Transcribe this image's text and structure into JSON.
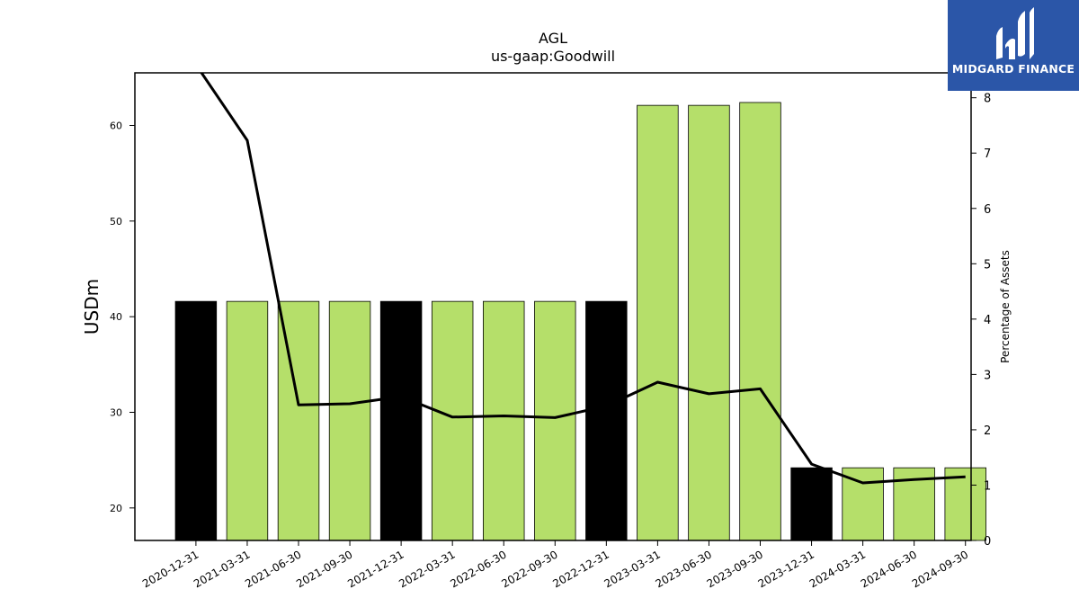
{
  "logo": {
    "text": "MIDGARD FINANCE",
    "bg_color": "#2b56a8",
    "fg_color": "#ffffff"
  },
  "chart_data": {
    "type": "bar",
    "title": "AGL",
    "subtitle": "us-gaap:Goodwill",
    "ylabel": "USDm",
    "ylabel_right": "Percentage of Assets",
    "ylim": [
      16.6,
      65.5
    ],
    "ylim_right": [
      0,
      8.45
    ],
    "yticks": [
      20,
      30,
      40,
      50,
      60
    ],
    "yticks_right": [
      0,
      1,
      2,
      3,
      4,
      5,
      6,
      7,
      8
    ],
    "categories": [
      "2020-12-31",
      "2021-03-31",
      "2021-06-30",
      "2021-09-30",
      "2021-12-31",
      "2022-03-31",
      "2022-06-30",
      "2022-09-30",
      "2022-12-31",
      "2023-03-31",
      "2023-06-30",
      "2023-09-30",
      "2023-12-31",
      "2024-03-31",
      "2024-06-30",
      "2024-09-30"
    ],
    "series": [
      {
        "type": "bar",
        "axis": "left",
        "values": [
          41.6,
          41.6,
          41.6,
          41.6,
          41.6,
          41.6,
          41.6,
          41.6,
          41.6,
          62.1,
          62.1,
          62.4,
          24.2,
          24.2,
          24.2,
          24.2
        ],
        "colors": [
          "#000000",
          "#b5df6a",
          "#b5df6a",
          "#b5df6a",
          "#000000",
          "#b5df6a",
          "#b5df6a",
          "#b5df6a",
          "#000000",
          "#b5df6a",
          "#b5df6a",
          "#b5df6a",
          "#000000",
          "#b5df6a",
          "#b5df6a",
          "#b5df6a"
        ]
      },
      {
        "type": "line",
        "axis": "right",
        "color": "#000000",
        "values": [
          8.6,
          7.23,
          2.45,
          2.47,
          2.6,
          2.23,
          2.25,
          2.22,
          2.43,
          2.86,
          2.65,
          2.74,
          1.38,
          1.04,
          1.1,
          1.15
        ]
      }
    ],
    "grid": false
  }
}
